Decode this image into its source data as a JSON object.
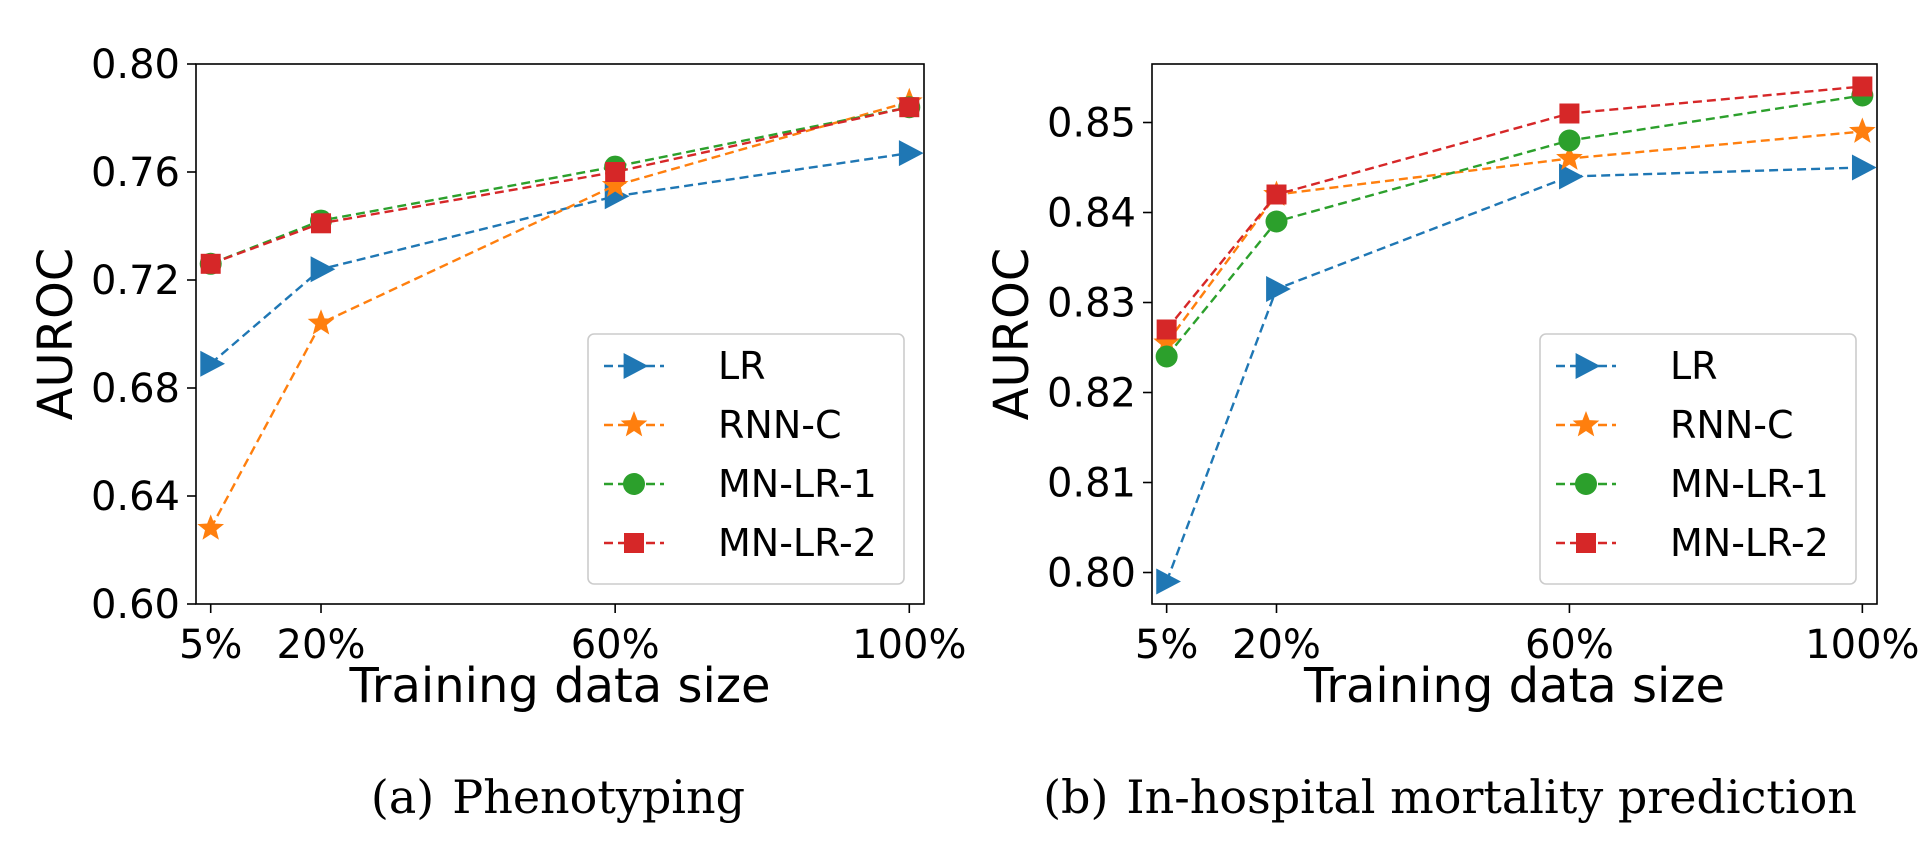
{
  "chart_data": [
    {
      "type": "line",
      "caption_tag": "(a)",
      "caption": "Phenotyping",
      "xlabel": "Training data size",
      "ylabel": "AUROC",
      "x": [
        5,
        20,
        60,
        100
      ],
      "x_tick_labels": [
        "5%",
        "20%",
        "60%",
        "100%"
      ],
      "xlim": [
        3,
        102
      ],
      "ylim": [
        0.6,
        0.8
      ],
      "y_ticks": [
        0.6,
        0.64,
        0.68,
        0.72,
        0.76,
        0.8
      ],
      "y_tick_labels": [
        "0.60",
        "0.64",
        "0.68",
        "0.72",
        "0.76",
        "0.80"
      ],
      "legend_position": "lower-right",
      "grid": false,
      "series": [
        {
          "name": "LR",
          "color": "#1f77b4",
          "marker": "triangle-right",
          "values": [
            0.689,
            0.724,
            0.751,
            0.767
          ]
        },
        {
          "name": "RNN-C",
          "color": "#ff7f0e",
          "marker": "star",
          "values": [
            0.628,
            0.704,
            0.755,
            0.786
          ]
        },
        {
          "name": "MN-LR-1",
          "color": "#2ca02c",
          "marker": "circle",
          "values": [
            0.726,
            0.742,
            0.762,
            0.784
          ]
        },
        {
          "name": "MN-LR-2",
          "color": "#d62728",
          "marker": "square",
          "values": [
            0.726,
            0.741,
            0.76,
            0.784
          ]
        }
      ]
    },
    {
      "type": "line",
      "caption_tag": "(b)",
      "caption": "In-hospital mortality prediction",
      "xlabel": "Training data size",
      "ylabel": "AUROC",
      "x": [
        5,
        20,
        60,
        100
      ],
      "x_tick_labels": [
        "5%",
        "20%",
        "60%",
        "100%"
      ],
      "xlim": [
        3,
        102
      ],
      "ylim": [
        0.7965,
        0.8565
      ],
      "y_ticks": [
        0.8,
        0.81,
        0.82,
        0.83,
        0.84,
        0.85
      ],
      "y_tick_labels": [
        "0.80",
        "0.81",
        "0.82",
        "0.83",
        "0.84",
        "0.85"
      ],
      "legend_position": "lower-right",
      "grid": false,
      "series": [
        {
          "name": "LR",
          "color": "#1f77b4",
          "marker": "triangle-right",
          "values": [
            0.799,
            0.8315,
            0.844,
            0.845
          ]
        },
        {
          "name": "RNN-C",
          "color": "#ff7f0e",
          "marker": "star",
          "values": [
            0.8255,
            0.842,
            0.846,
            0.849
          ]
        },
        {
          "name": "MN-LR-1",
          "color": "#2ca02c",
          "marker": "circle",
          "values": [
            0.824,
            0.839,
            0.848,
            0.853
          ]
        },
        {
          "name": "MN-LR-2",
          "color": "#d62728",
          "marker": "square",
          "values": [
            0.827,
            0.842,
            0.851,
            0.854
          ]
        }
      ]
    }
  ]
}
